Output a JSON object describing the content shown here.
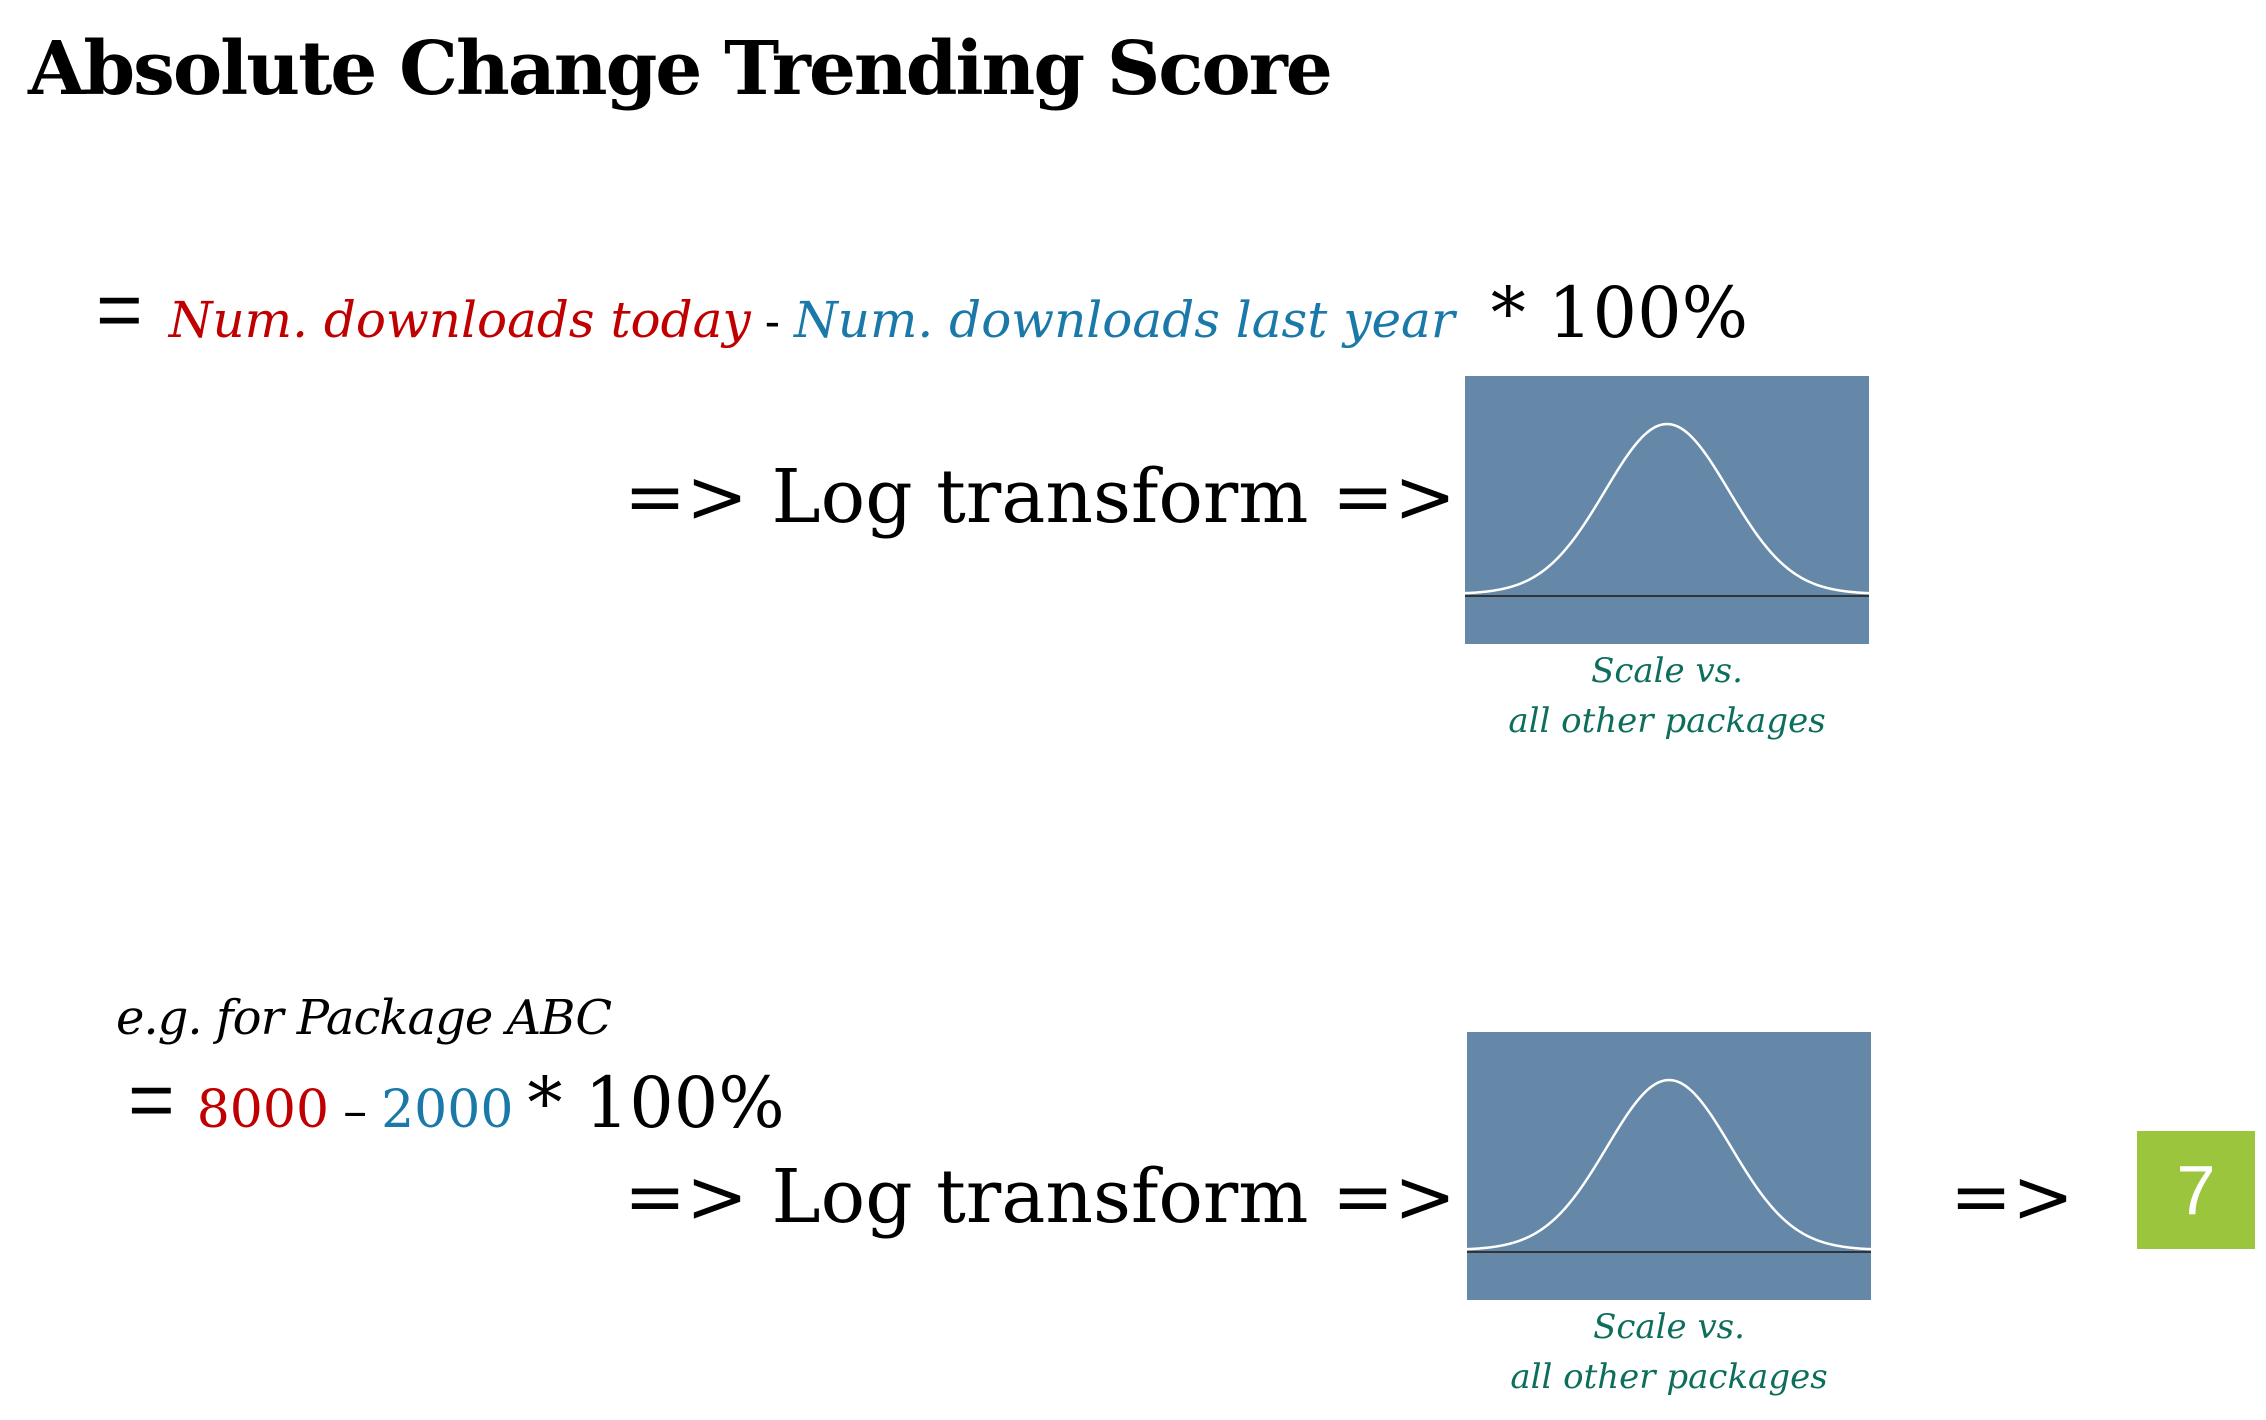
{
  "slide": {
    "title": "Absolute Change Trending Score"
  },
  "formula": {
    "equals": "=",
    "term_today": "Num.  downloads today",
    "minus": "-",
    "term_last_year": "Num.  downloads last year",
    "multiplier": "* 100%",
    "arrow_log": "=> Log transform =>"
  },
  "panel_top": {
    "caption_line1": "Scale vs.",
    "caption_line2": "all other packages",
    "curve": "bell-curve-icon"
  },
  "example": {
    "label": "e.g. for Package ABC",
    "equals": "=",
    "value_today": "8000",
    "dash": "–",
    "value_last_year": "2000",
    "multiplier": "* 100%",
    "arrow_log": "=> Log transform =>",
    "arrow_result": "=>",
    "score": "7"
  },
  "panel_bottom": {
    "caption_line1": "Scale vs.",
    "caption_line2": "all other packages",
    "curve": "bell-curve-icon"
  },
  "colors": {
    "red": "#c00000",
    "blue": "#1a79a8",
    "panel": "#6588a8",
    "caption": "#0e6e5c",
    "score_box": "#9bc53d"
  }
}
